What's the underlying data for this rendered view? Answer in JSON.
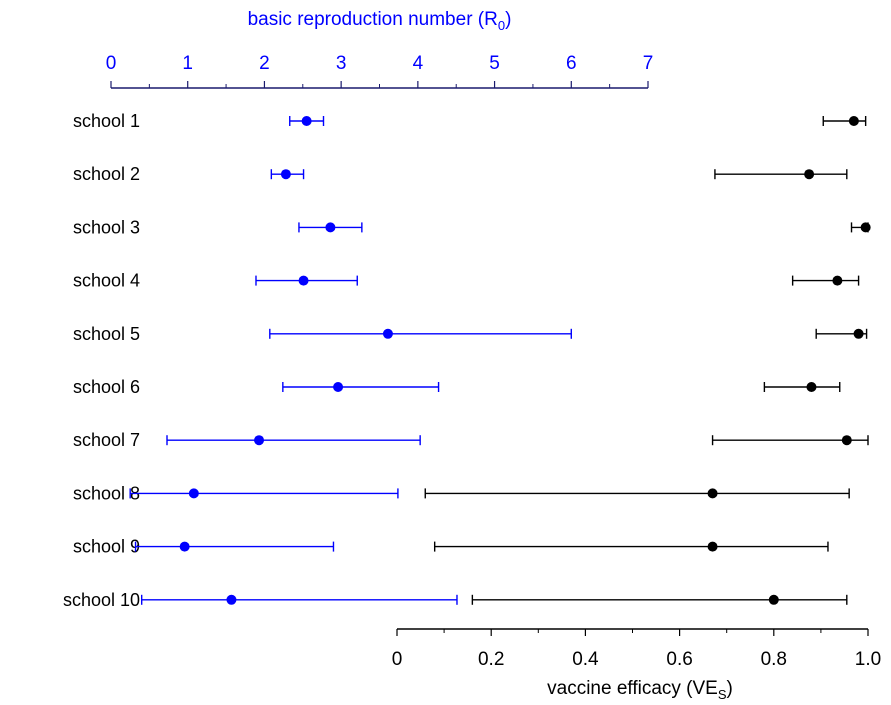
{
  "colors": {
    "r0": "#0000ff",
    "ve": "#000000"
  },
  "chart_data": {
    "type": "scatter",
    "categories": [
      "school 1",
      "school 2",
      "school 3",
      "school 4",
      "school 5",
      "school 6",
      "school 7",
      "school 8",
      "school 9",
      "school 10"
    ],
    "r0": {
      "axis_title_main": "basic reproduction number (R",
      "axis_title_sub": "0",
      "axis_title_end": ")",
      "xlim": [
        0,
        7
      ],
      "ticks": [
        0,
        1,
        2,
        3,
        4,
        5,
        6,
        7
      ],
      "tick_labels": [
        "0",
        "1",
        "2",
        "3",
        "4",
        "5",
        "6",
        "7"
      ],
      "points": [
        {
          "value": 2.55,
          "low": 2.33,
          "high": 2.77
        },
        {
          "value": 2.28,
          "low": 2.09,
          "high": 2.51
        },
        {
          "value": 2.86,
          "low": 2.45,
          "high": 3.27
        },
        {
          "value": 2.51,
          "low": 1.89,
          "high": 3.21
        },
        {
          "value": 3.61,
          "low": 2.07,
          "high": 6.0
        },
        {
          "value": 2.96,
          "low": 2.24,
          "high": 4.27
        },
        {
          "value": 1.93,
          "low": 0.73,
          "high": 4.03
        },
        {
          "value": 1.08,
          "low": 0.25,
          "high": 3.74
        },
        {
          "value": 0.96,
          "low": 0.32,
          "high": 2.9
        },
        {
          "value": 1.57,
          "low": 0.4,
          "high": 4.51
        }
      ]
    },
    "ve": {
      "axis_title_main": "vaccine efficacy (VE",
      "axis_title_sub": "S",
      "axis_title_end": ")",
      "xlim": [
        0,
        1
      ],
      "ticks": [
        0,
        0.2,
        0.4,
        0.6,
        0.8,
        1.0
      ],
      "tick_labels": [
        "0",
        "0.2",
        "0.4",
        "0.6",
        "0.8",
        "1.0"
      ],
      "points": [
        {
          "value": 0.97,
          "low": 0.905,
          "high": 0.995
        },
        {
          "value": 0.875,
          "low": 0.675,
          "high": 0.955
        },
        {
          "value": 0.995,
          "low": 0.965,
          "high": 1.0
        },
        {
          "value": 0.935,
          "low": 0.84,
          "high": 0.98
        },
        {
          "value": 0.98,
          "low": 0.89,
          "high": 0.997
        },
        {
          "value": 0.88,
          "low": 0.78,
          "high": 0.94
        },
        {
          "value": 0.955,
          "low": 0.67,
          "high": 1.0
        },
        {
          "value": 0.67,
          "low": 0.06,
          "high": 0.96
        },
        {
          "value": 0.67,
          "low": 0.08,
          "high": 0.915
        },
        {
          "value": 0.8,
          "low": 0.16,
          "high": 0.955
        }
      ]
    }
  }
}
